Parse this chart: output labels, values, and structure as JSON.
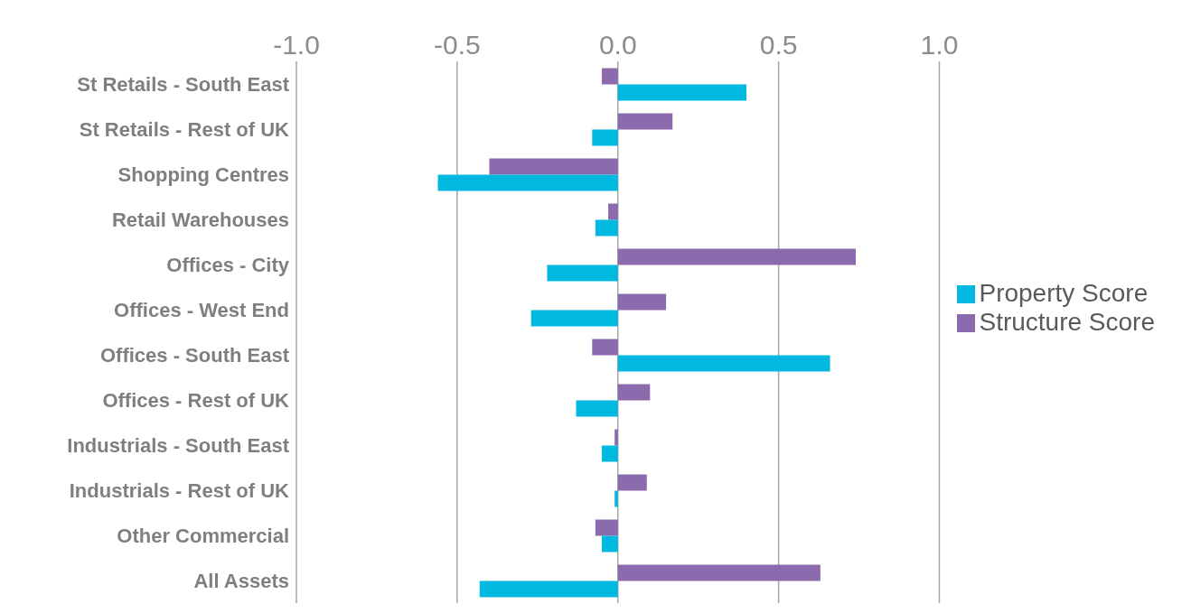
{
  "chart_data": {
    "type": "bar",
    "orientation": "horizontal",
    "categories": [
      "St Retails - South East",
      "St Retails - Rest of UK",
      "Shopping Centres",
      "Retail Warehouses",
      "Offices - City",
      "Offices - West End",
      "Offices - South East",
      "Offices - Rest of UK",
      "Industrials - South East",
      "Industrials - Rest of UK",
      "Other Commercial",
      "All Assets"
    ],
    "series": [
      {
        "name": "Structure Score",
        "color": "#8b6aae",
        "values": [
          -0.05,
          0.17,
          -0.4,
          -0.03,
          0.74,
          0.15,
          -0.08,
          0.1,
          -0.01,
          0.09,
          -0.07,
          0.63
        ]
      },
      {
        "name": "Property Score",
        "color": "#00b8e0",
        "values": [
          0.4,
          -0.08,
          -0.56,
          -0.07,
          -0.22,
          -0.27,
          0.66,
          -0.13,
          -0.05,
          -0.01,
          -0.05,
          -0.43
        ]
      }
    ],
    "xlim": [
      -1,
      1
    ],
    "xticks": [
      {
        "value": -1,
        "label": "-1.0"
      },
      {
        "value": -0.5,
        "label": "-0.5"
      },
      {
        "value": 0,
        "label": "0.0"
      },
      {
        "value": 0.5,
        "label": "0.5"
      },
      {
        "value": 1,
        "label": "1.0"
      }
    ],
    "grid": "x",
    "legend": "right"
  }
}
